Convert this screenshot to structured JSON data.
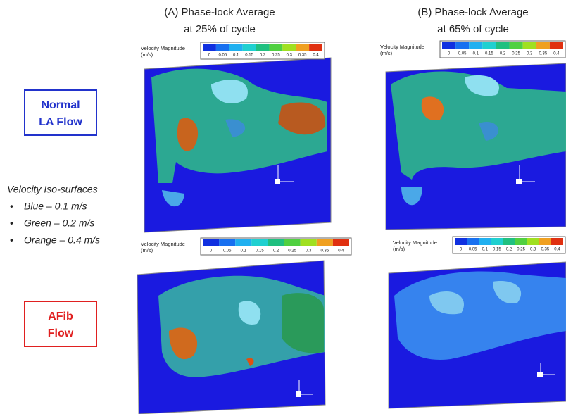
{
  "columns": [
    {
      "line1": "(A) Phase-lock Average",
      "line2": "at 25% of cycle"
    },
    {
      "line1": "(B) Phase-lock Average",
      "line2": "at 65% of cycle"
    }
  ],
  "rows": [
    {
      "line1": "Normal",
      "line2": "LA Flow"
    },
    {
      "line1": "AFib",
      "line2": "Flow"
    }
  ],
  "legend": {
    "title": "Velocity Iso-surfaces",
    "items": [
      "Blue – 0.1 m/s",
      "Green – 0.2 m/s",
      "Orange – 0.4 m/s"
    ]
  },
  "colorbars": [
    {
      "title": "Velocity Magnitude",
      "unit": "(m/s)",
      "ticks": [
        "0",
        "0.05",
        "0.1",
        "0.15",
        "0.2",
        "0.25",
        "0.3",
        "0.35",
        "0.4"
      ]
    },
    {
      "title": "Velocity Magnitude",
      "unit": "(m/s)",
      "ticks": [
        "0",
        "0.05",
        "0.1",
        "0.15",
        "0.2",
        "0.25",
        "0.3",
        "0.35",
        "0.4"
      ]
    },
    {
      "title": "Velocity Magnitude",
      "unit": "(m/s)",
      "ticks": [
        "0",
        "0.05",
        "0.1",
        "0.15",
        "0.2",
        "0.25",
        "0.3",
        "0.35",
        "0.4"
      ]
    },
    {
      "title": "Velocity Magnitude",
      "unit": "(m/s)",
      "ticks": [
        "0",
        "0.05",
        "0.1",
        "0.15",
        "0.2",
        "0.25",
        "0.3",
        "0.35",
        "0.4"
      ]
    }
  ]
}
